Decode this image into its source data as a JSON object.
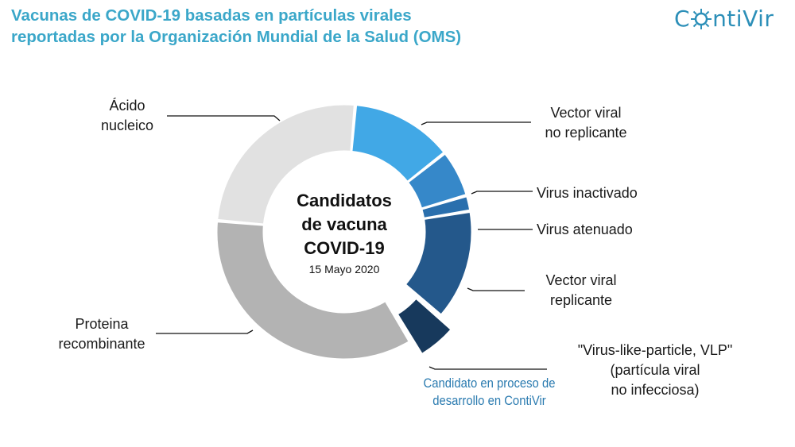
{
  "header": {
    "title_line1": "Vacunas de COVID-19 basadas en partículas virales",
    "title_line2": "reportadas por la Organización Mundial de la Salud (OMS)",
    "logo_text_pre": "C",
    "logo_text_post": "ntiVir",
    "accent_color": "#3ba7c9"
  },
  "center": {
    "line1": "Candidatos",
    "line2": "de vacuna",
    "line3": "COVID-19",
    "date": "15 Mayo 2020"
  },
  "note": {
    "line1": "Candidato en proceso de",
    "line2": "desarrollo en ContiVir"
  },
  "chart_data": {
    "type": "donut",
    "title": "Candidatos de vacuna COVID-19",
    "subtitle": "15 Mayo 2020",
    "series": [
      {
        "label_lines": [
          "Vector viral",
          "no replicante"
        ],
        "value": 13,
        "color": "#41a8e6",
        "exploded": false
      },
      {
        "label_lines": [
          "Virus inactivado"
        ],
        "value": 6,
        "color": "#3688c9",
        "exploded": false
      },
      {
        "label_lines": [
          "Virus atenuado"
        ],
        "value": 2,
        "color": "#2a6fad",
        "exploded": false
      },
      {
        "label_lines": [
          "Vector viral",
          "replicante"
        ],
        "value": 14,
        "color": "#24588b",
        "exploded": false
      },
      {
        "label_lines": [
          "\"Virus-like-particle, VLP\"",
          "(partícula viral",
          "no infecciosa)"
        ],
        "value": 5,
        "color": "#17395c",
        "exploded": true
      },
      {
        "label_lines": [
          "Proteina",
          "recombinante"
        ],
        "value": 35,
        "color": "#b3b3b3",
        "exploded": false
      },
      {
        "label_lines": [
          "Ácido",
          "nucleico"
        ],
        "value": 25,
        "color": "#e1e1e1",
        "exploded": false
      }
    ]
  }
}
